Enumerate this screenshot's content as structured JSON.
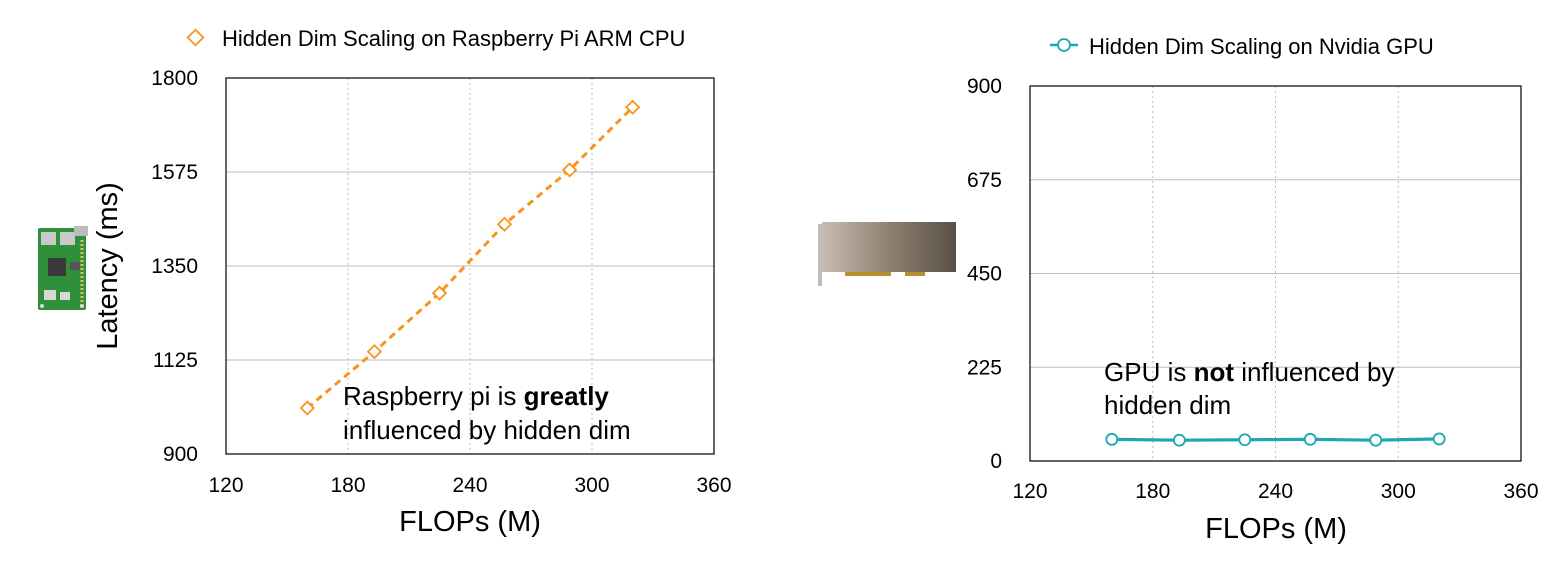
{
  "chart_data": [
    {
      "type": "line",
      "device_icon": "raspberry-pi-board-icon",
      "legend": "Hidden Dim Scaling on Raspberry Pi ARM CPU",
      "xlabel": "FLOPs (M)",
      "ylabel": "Latency (ms)",
      "xlim": [
        120,
        360
      ],
      "ylim": [
        900,
        1800
      ],
      "xticks": [
        120,
        180,
        240,
        300,
        360
      ],
      "yticks": [
        900,
        1125,
        1350,
        1575,
        1800
      ],
      "grid": "vertical-dotted and horizontal",
      "line_style": "dashed",
      "marker": "diamond",
      "color": "#F7941D",
      "series": [
        {
          "name": "Hidden Dim Scaling on Raspberry Pi ARM CPU",
          "x": [
            160,
            193,
            225,
            257,
            289,
            320
          ],
          "y": [
            1010,
            1145,
            1285,
            1450,
            1580,
            1730
          ]
        }
      ],
      "annotation": {
        "before": "Raspberry pi is ",
        "bold": "greatly",
        "line2": "influenced by hidden dim"
      }
    },
    {
      "type": "line",
      "device_icon": "nvidia-gpu-card-icon",
      "legend": "Hidden Dim Scaling on Nvidia GPU",
      "xlabel": "FLOPs (M)",
      "ylabel": "",
      "xlim": [
        120,
        360
      ],
      "ylim": [
        0,
        900
      ],
      "xticks": [
        120,
        180,
        240,
        300,
        360
      ],
      "yticks": [
        0,
        225,
        450,
        675,
        900
      ],
      "grid": "vertical-dotted and horizontal",
      "line_style": "solid",
      "marker": "circle",
      "color": "#1BA8B0",
      "series": [
        {
          "name": "Hidden Dim Scaling on Nvidia GPU",
          "x": [
            160,
            193,
            225,
            257,
            289,
            320
          ],
          "y": [
            52,
            50,
            51,
            52,
            50,
            53
          ]
        }
      ],
      "annotation": {
        "before": "GPU is ",
        "bold": "not",
        "after": " influenced by",
        "line2": "hidden dim"
      }
    }
  ]
}
